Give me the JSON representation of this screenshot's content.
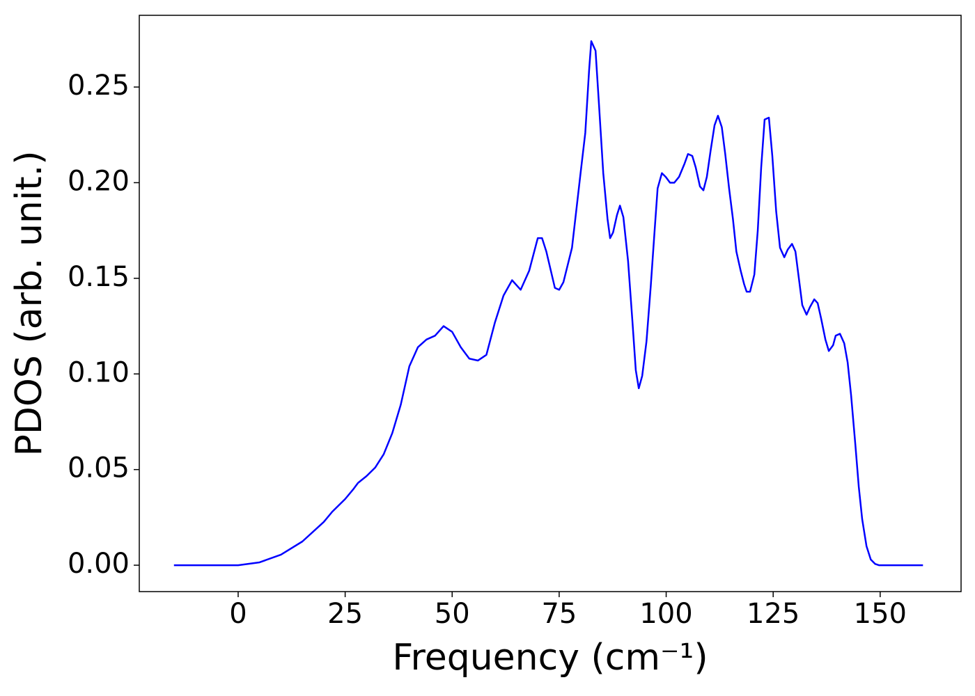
{
  "chart_data": {
    "type": "line",
    "xlabel": "Frequency (cm⁻¹)",
    "ylabel": "PDOS (arb. unit.)",
    "xlim": [
      -23.1,
      168.9
    ],
    "ylim": [
      -0.0138,
      0.2875
    ],
    "xticks": [
      0,
      25,
      50,
      75,
      100,
      125,
      150
    ],
    "yticks": [
      {
        "value": 0,
        "label": "0.00"
      },
      {
        "value": 0.05,
        "label": "0.05"
      },
      {
        "value": 0.1,
        "label": "0.10"
      },
      {
        "value": 0.15,
        "label": "0.15"
      },
      {
        "value": 0.2,
        "label": "0.20"
      },
      {
        "value": 0.25,
        "label": "0.25"
      }
    ],
    "series": [
      {
        "name": "PDOS",
        "color": "#0000ff",
        "x": [
          -15,
          0,
          5,
          10,
          15,
          20,
          22,
          25,
          27,
          28,
          30,
          32,
          34,
          36,
          38,
          40,
          42,
          44,
          46,
          48,
          50,
          52,
          54,
          56,
          58,
          60,
          62,
          64,
          66,
          68,
          70,
          71,
          72,
          74,
          75,
          76,
          78,
          80,
          81.1,
          82.0,
          82.5,
          83.5,
          84.3,
          85.3,
          86.3,
          86.9,
          87.6,
          88.5,
          89.2,
          90.0,
          91.1,
          92.1,
          92.9,
          93.6,
          94.4,
          95.4,
          96.4,
          97.3,
          98.0,
          99.0,
          99.9,
          100.9,
          101.9,
          103.0,
          104.3,
          105.1,
          106.1,
          106.9,
          107.9,
          108.7,
          109.5,
          110.4,
          111.3,
          112.1,
          113.0,
          113.8,
          114.7,
          115.6,
          116.4,
          117.4,
          118.2,
          118.8,
          119.6,
          120.6,
          121.4,
          122.2,
          123.0,
          124.0,
          124.8,
          125.7,
          126.6,
          127.6,
          128.4,
          129.4,
          130.2,
          131.0,
          131.8,
          132.8,
          133.6,
          134.6,
          135.4,
          136.2,
          137.2,
          138.0,
          139.0,
          139.6,
          140.6,
          141.6,
          142.4,
          143.2,
          144.2,
          145.0,
          145.8,
          146.8,
          147.8,
          148.8,
          149.7,
          160
        ],
        "values": [
          0,
          0,
          0.0015,
          0.0055,
          0.0124,
          0.0226,
          0.028,
          0.0346,
          0.04,
          0.043,
          0.0466,
          0.051,
          0.058,
          0.069,
          0.084,
          0.104,
          0.114,
          0.118,
          0.12,
          0.125,
          0.122,
          0.114,
          0.108,
          0.107,
          0.11,
          0.127,
          0.141,
          0.149,
          0.144,
          0.154,
          0.171,
          0.171,
          0.164,
          0.145,
          0.144,
          0.148,
          0.166,
          0.205,
          0.226,
          0.259,
          0.274,
          0.269,
          0.241,
          0.205,
          0.181,
          0.171,
          0.174,
          0.183,
          0.188,
          0.182,
          0.159,
          0.128,
          0.102,
          0.0925,
          0.099,
          0.117,
          0.146,
          0.175,
          0.197,
          0.205,
          0.203,
          0.2,
          0.2,
          0.203,
          0.21,
          0.215,
          0.214,
          0.208,
          0.198,
          0.196,
          0.203,
          0.217,
          0.23,
          0.235,
          0.229,
          0.215,
          0.197,
          0.181,
          0.164,
          0.154,
          0.147,
          0.143,
          0.143,
          0.152,
          0.175,
          0.208,
          0.233,
          0.234,
          0.214,
          0.185,
          0.166,
          0.161,
          0.165,
          0.168,
          0.164,
          0.15,
          0.136,
          0.131,
          0.135,
          0.139,
          0.137,
          0.129,
          0.118,
          0.112,
          0.115,
          0.12,
          0.121,
          0.116,
          0.106,
          0.089,
          0.063,
          0.041,
          0.024,
          0.01,
          0.003,
          0.0007,
          0,
          0
        ]
      }
    ]
  }
}
